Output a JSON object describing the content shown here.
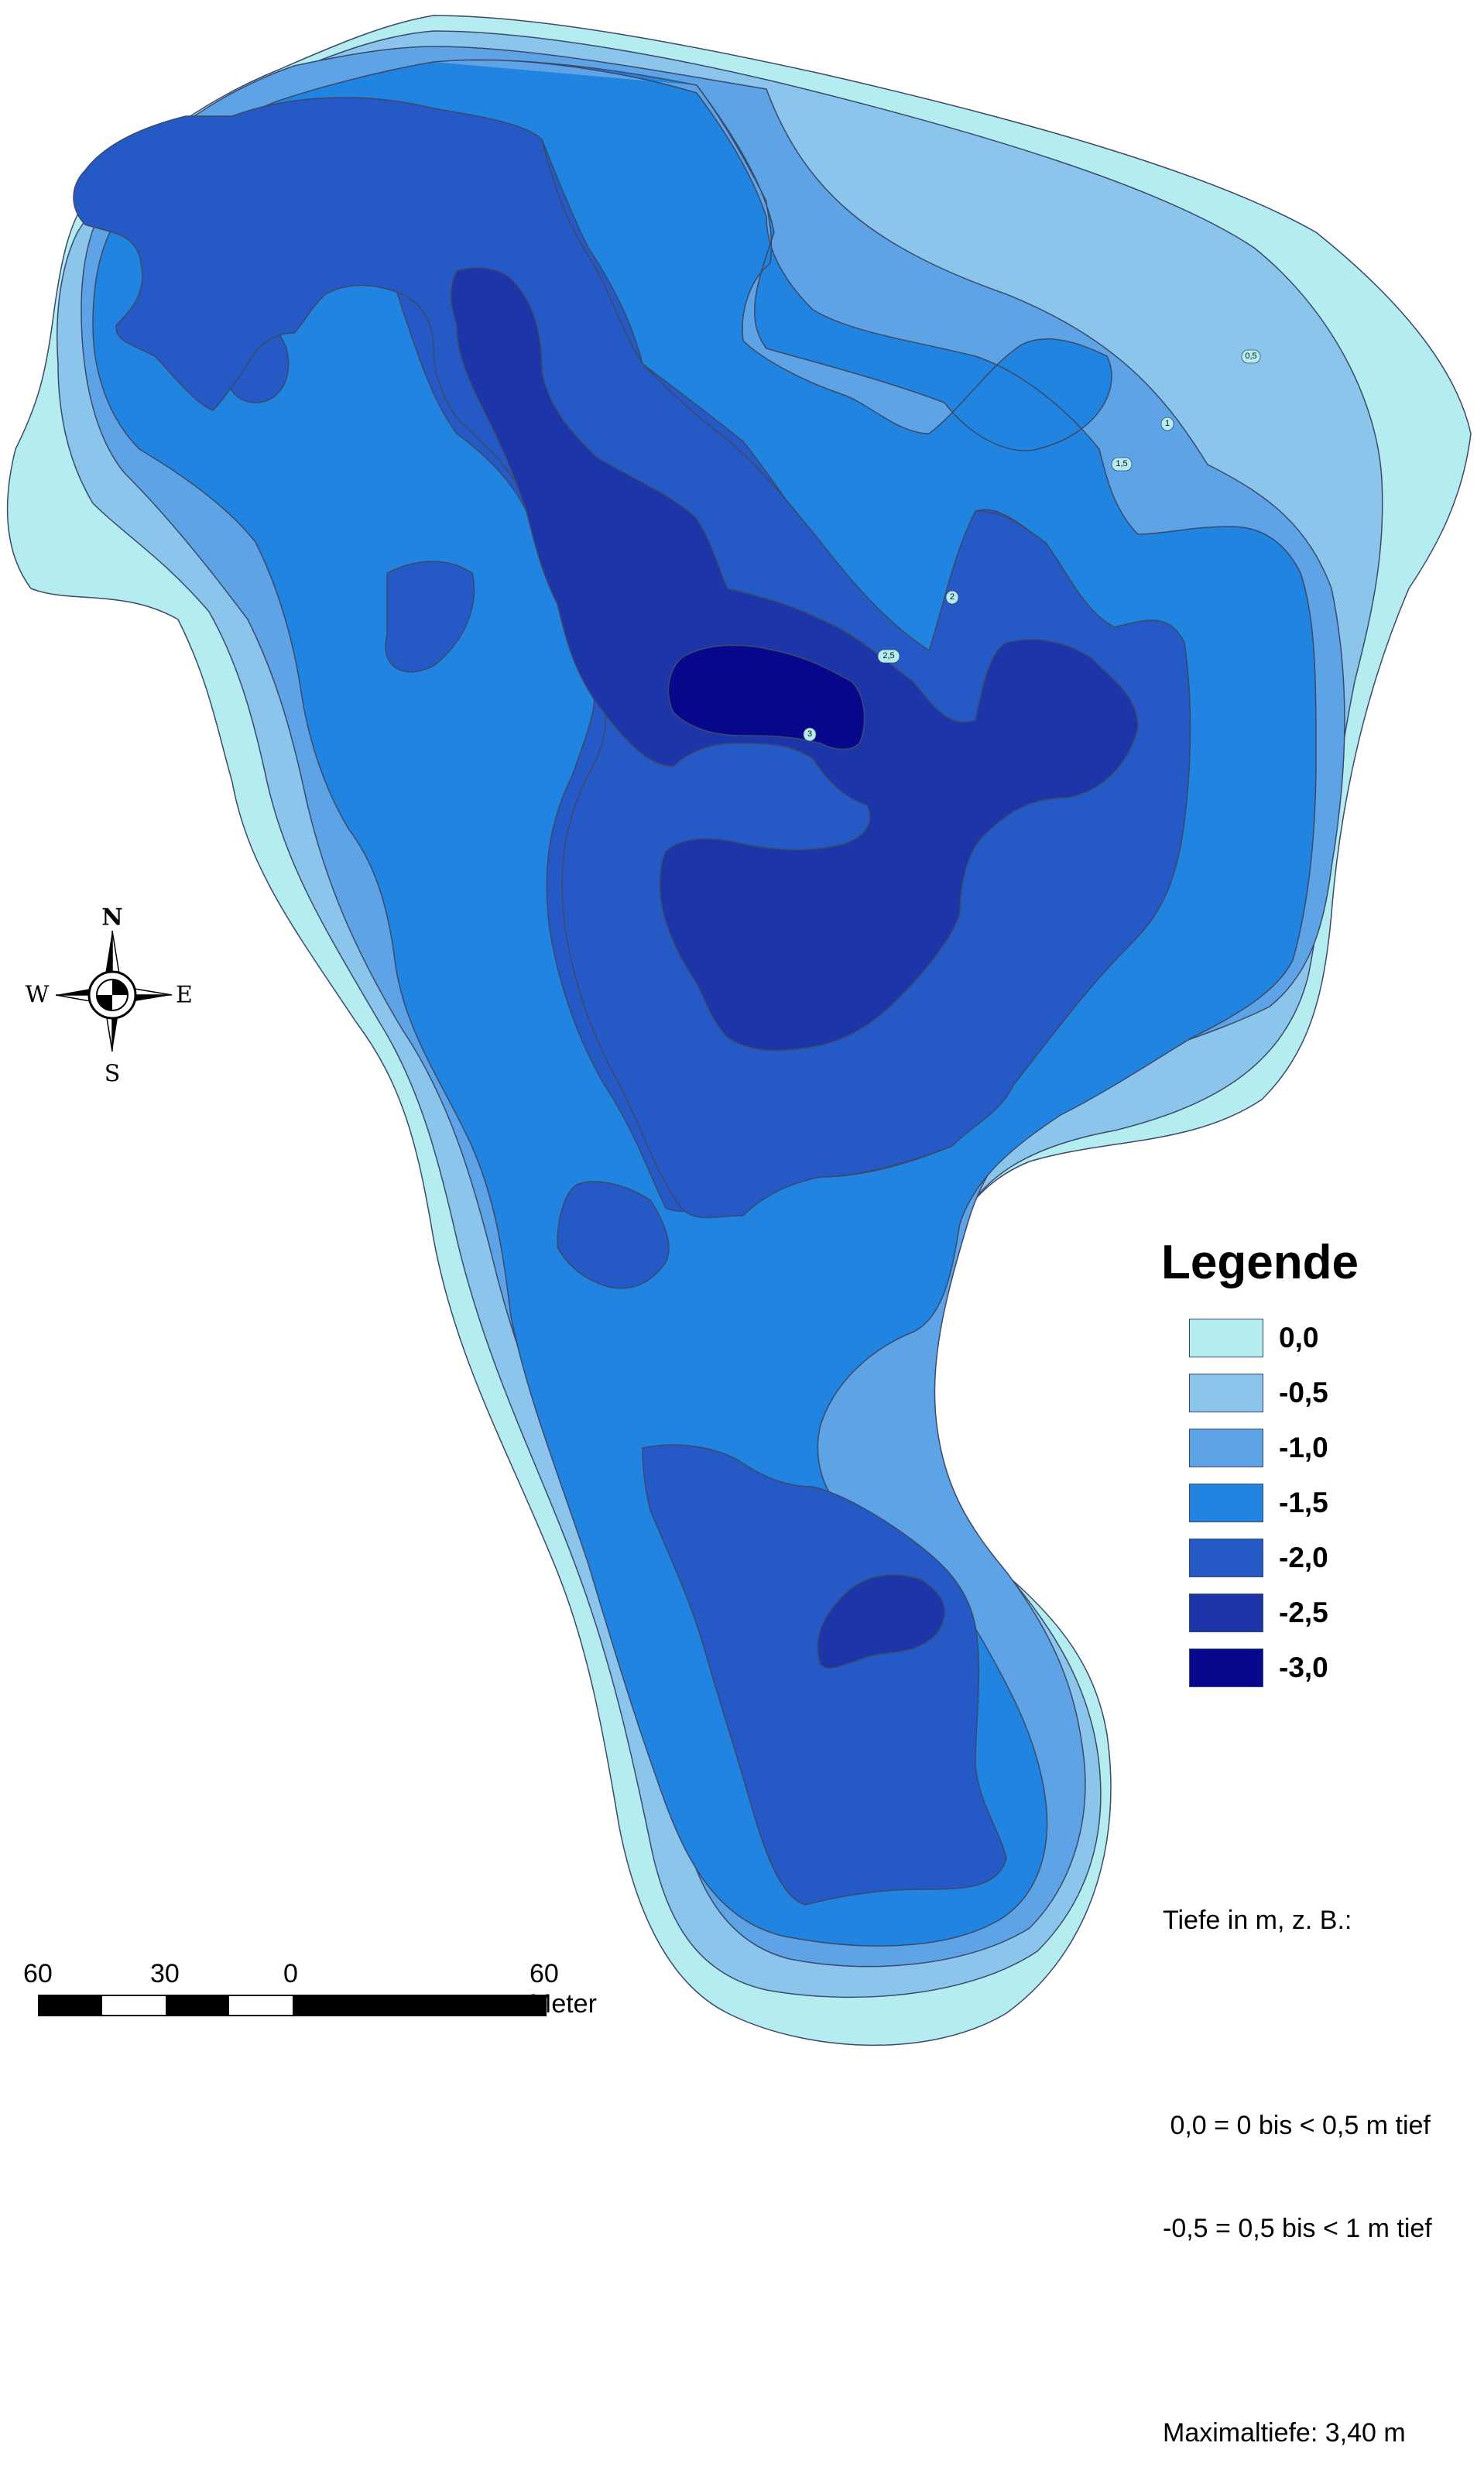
{
  "legend": {
    "title": "Legende",
    "items": [
      {
        "label": "0,0",
        "color": "#b5ecf0"
      },
      {
        "label": "-0,5",
        "color": "#8cc5ec"
      },
      {
        "label": "-1,0",
        "color": "#5da3e5"
      },
      {
        "label": "-1,5",
        "color": "#2084e0"
      },
      {
        "label": "-2,0",
        "color": "#2459c6"
      },
      {
        "label": "-2,5",
        "color": "#1c36aa"
      },
      {
        "label": "-3,0",
        "color": "#08088c"
      }
    ]
  },
  "contour_labels": [
    "0,5",
    "1",
    "1,5",
    "2",
    "2,5",
    "3"
  ],
  "compass": {
    "north": "N",
    "east": "E",
    "south": "S",
    "west": "W"
  },
  "scale_bar": {
    "labels": [
      "60",
      "30",
      "0",
      "60 Meter"
    ]
  },
  "notes": {
    "line1": "Tiefe in m, z. B.:",
    "line2": " 0,0 = 0 bis < 0,5 m tief",
    "line3": "-0,5 = 0,5 bis < 1 m tief",
    "line4": "Maximaltiefe: 3,40 m"
  }
}
